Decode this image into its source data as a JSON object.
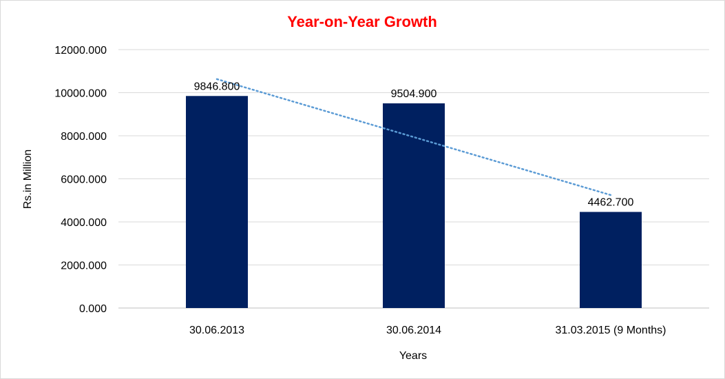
{
  "chart_data": {
    "type": "bar",
    "title": "Year-on-Year Growth",
    "xlabel": "Years",
    "ylabel": "Rs.in Million",
    "categories": [
      "30.06.2013",
      "30.06.2014",
      "31.03.2015 (9 Months)"
    ],
    "values": [
      9846.8,
      9504.9,
      4462.7
    ],
    "data_labels": [
      "9846.800",
      "9504.900",
      "4462.700"
    ],
    "ylim": [
      0,
      12000
    ],
    "yticks": [
      0,
      2000,
      4000,
      6000,
      8000,
      10000,
      12000
    ],
    "ytick_labels": [
      "0.000",
      "2000.000",
      "4000.000",
      "6000.000",
      "8000.000",
      "10000.000",
      "12000.000"
    ],
    "grid": true,
    "legend": "none",
    "trendline": "linear",
    "colors": {
      "bar": "#002060",
      "trendline": "#5b9bd5",
      "title": "#ff0000",
      "grid": "#d9d9d9"
    }
  }
}
